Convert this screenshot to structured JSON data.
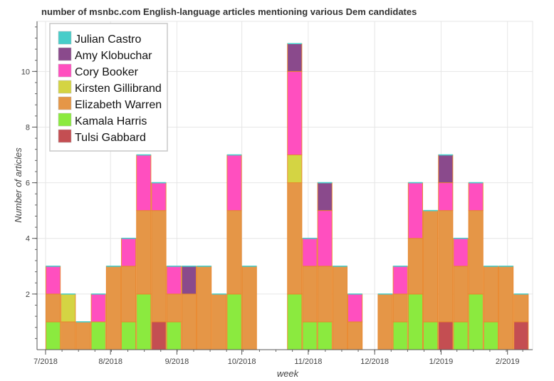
{
  "chart_data": {
    "type": "bar",
    "stacked": true,
    "title": "number of msnbc.com English-language articles mentioning various Dem candidates",
    "xlabel": "week",
    "ylabel": "Number of articles",
    "ylim": [
      0,
      11.8
    ],
    "y_ticks": [
      2,
      4,
      6,
      8,
      10
    ],
    "x_tick_labels": [
      "7/2018",
      "8/2018",
      "9/2018",
      "10/2018",
      "11/2018",
      "12/2018",
      "1/2019",
      "2/2019"
    ],
    "x_tick_weeks": [
      0,
      4.3,
      8.7,
      13.0,
      17.4,
      21.8,
      26.2,
      30.6
    ],
    "week_count": 32,
    "legend_position": "top-left",
    "series": [
      {
        "name": "Tulsi Gabbard",
        "color": "#c44e52",
        "values": [
          0,
          0,
          0,
          0,
          0,
          0,
          0,
          1,
          0,
          0,
          0,
          0,
          0,
          0,
          0,
          0,
          0,
          0,
          0,
          0,
          0,
          0,
          0,
          0,
          0,
          0,
          1,
          0,
          0,
          0,
          0,
          1
        ]
      },
      {
        "name": "Kamala Harris",
        "color": "#8bea3f",
        "values": [
          1,
          0,
          0,
          1,
          0,
          1,
          2,
          0,
          1,
          0,
          0,
          0,
          2,
          0,
          0,
          0,
          2,
          1,
          1,
          0,
          0,
          0,
          0,
          1,
          2,
          1,
          0,
          1,
          2,
          1,
          0,
          0
        ]
      },
      {
        "name": "Elizabeth Warren",
        "color": "#e59647",
        "values": [
          1,
          1,
          1,
          0,
          3,
          2,
          3,
          4,
          1,
          2,
          3,
          2,
          3,
          3,
          0,
          0,
          4,
          2,
          2,
          3,
          1,
          0,
          2,
          1,
          2,
          4,
          4,
          2,
          3,
          2,
          3,
          1
        ]
      },
      {
        "name": "Kirsten Gillibrand",
        "color": "#d4d443",
        "values": [
          0,
          1,
          0,
          0,
          0,
          0,
          0,
          0,
          0,
          0,
          0,
          0,
          0,
          0,
          0,
          0,
          1,
          0,
          0,
          0,
          0,
          0,
          0,
          0,
          0,
          0,
          0,
          0,
          0,
          0,
          0,
          0
        ]
      },
      {
        "name": "Cory Booker",
        "color": "#ff4fbf",
        "values": [
          1,
          0,
          0,
          1,
          0,
          1,
          2,
          1,
          1,
          0,
          0,
          0,
          2,
          0,
          0,
          0,
          3,
          1,
          2,
          0,
          1,
          0,
          0,
          1,
          2,
          0,
          1,
          1,
          1,
          0,
          0,
          0
        ]
      },
      {
        "name": "Amy Klobuchar",
        "color": "#8a4a8c",
        "values": [
          0,
          0,
          0,
          0,
          0,
          0,
          0,
          0,
          0,
          1,
          0,
          0,
          0,
          0,
          0,
          0,
          1,
          0,
          1,
          0,
          0,
          0,
          0,
          0,
          0,
          0,
          1,
          0,
          0,
          0,
          0,
          0
        ]
      },
      {
        "name": "Julian Castro",
        "color": "#47cdc9",
        "values": [
          0,
          0,
          0,
          0,
          0,
          0,
          0,
          0,
          0,
          0,
          0,
          0,
          0,
          0,
          0,
          0,
          0,
          0,
          0,
          0,
          0,
          0,
          0,
          0,
          0,
          0,
          0,
          0,
          0,
          0,
          0,
          0
        ]
      }
    ],
    "legend": [
      "Julian Castro",
      "Amy Klobuchar",
      "Cory Booker",
      "Kirsten Gillibrand",
      "Elizabeth Warren",
      "Kamala Harris",
      "Tulsi Gabbard"
    ]
  }
}
